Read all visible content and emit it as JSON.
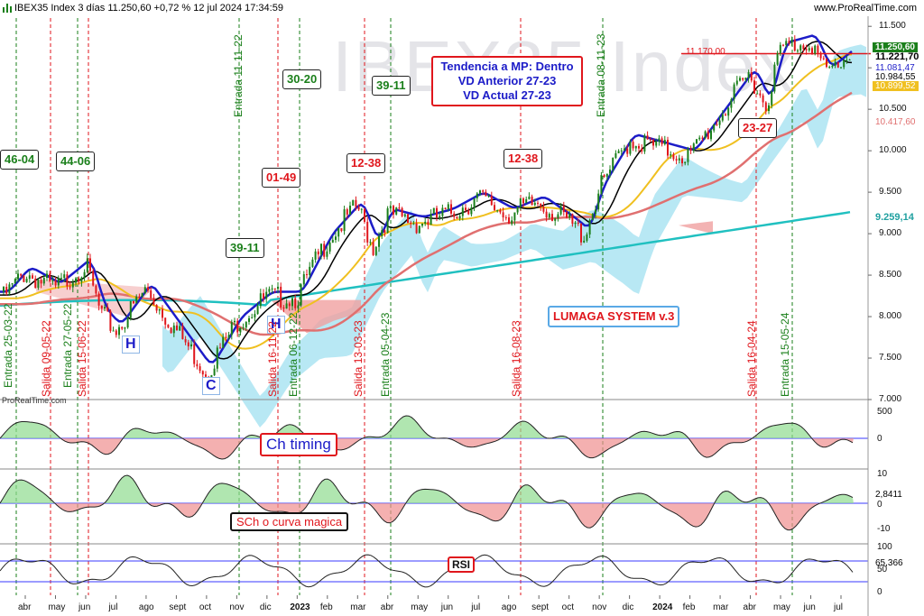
{
  "header": {
    "title": "IBEX35 Index 3 días 11.250,60 +0,72 % 12 jul 2024 17:34:59",
    "site": "www.ProRealTime.com",
    "watermark": "IBEX35 Index",
    "footer_brand": "ProRealTime.com"
  },
  "colors": {
    "up": "#1a7f1a",
    "down": "#e0161c",
    "fast_ma": "#1c1cc8",
    "mid_ma": "#000000",
    "yellow_ma": "#f0c020",
    "salmon_ma": "#e07070",
    "teal_ma": "#20c0c0",
    "cloud_up": "#a0e0f0",
    "cloud_down": "#f0a0a0"
  },
  "annotations": {
    "tendencia": [
      "Tendencia a MP: Dentro",
      "VD Anterior 27-23",
      "VD Actual 27-23"
    ],
    "lumaga": "LUMAGA SYSTEM v.3",
    "ch_timing": "Ch timing",
    "sch": "SCh o curva magica",
    "rsi": "RSI",
    "boxes": [
      {
        "text": "46-04",
        "color": "green"
      },
      {
        "text": "44-06",
        "color": "green"
      },
      {
        "text": "39-11",
        "color": "green"
      },
      {
        "text": "30-20",
        "color": "green"
      },
      {
        "text": "39-11",
        "color": "green"
      },
      {
        "text": "01-49",
        "color": "red"
      },
      {
        "text": "12-38",
        "color": "red"
      },
      {
        "text": "12-38",
        "color": "red"
      },
      {
        "text": "23-27",
        "color": "red"
      }
    ],
    "patterns": [
      "H",
      "C",
      "H"
    ],
    "level_line_label": "11.170,00",
    "signals": [
      {
        "label": "Entrada 25-03-22",
        "type": "entry"
      },
      {
        "label": "Salida 09-05-22",
        "type": "exit"
      },
      {
        "label": "Entrada 27-05-22",
        "type": "entry"
      },
      {
        "label": "Salida 15-06-22",
        "type": "exit"
      },
      {
        "label": "Entrada 11-11-22",
        "type": "entry"
      },
      {
        "label": "Salida 16-11-22",
        "type": "exit"
      },
      {
        "label": "Entrada 06-12-22",
        "type": "entry"
      },
      {
        "label": "Salida 13-03-23",
        "type": "exit"
      },
      {
        "label": "Entrada 05-04-23",
        "type": "entry"
      },
      {
        "label": "Salida 16-08-23",
        "type": "exit"
      },
      {
        "label": "Entrada 08-11-23",
        "type": "entry"
      },
      {
        "label": "Salida 16-04-24",
        "type": "exit"
      },
      {
        "label": "Entrada 15-05-24",
        "type": "entry"
      }
    ]
  },
  "price_tags": [
    {
      "text": "11.250,60",
      "bg": "#1a7f1a",
      "fg": "#ffffff"
    },
    {
      "text": "11.221,70",
      "bg": "#ffffff",
      "fg": "#000000"
    },
    {
      "text": "11.081,47",
      "bg": "#ffffff",
      "fg": "#1c1cc8"
    },
    {
      "text": "10.984,55",
      "bg": "#ffffff",
      "fg": "#000000"
    },
    {
      "text": "10.899,52",
      "bg": "#f0c020",
      "fg": "#ffffff"
    },
    {
      "text": "10.417,60",
      "bg": "#ffffff",
      "fg": "#e07070"
    },
    {
      "text": "9.259,14",
      "bg": "#ffffff",
      "fg": "#20a0a0"
    }
  ],
  "chart_data": [
    {
      "type": "candlestick",
      "title": "IBEX35 Index 3 días",
      "x_ticks": [
        "abr",
        "may",
        "jun",
        "jul",
        "ago",
        "sept",
        "oct",
        "nov",
        "dic",
        "2023",
        "feb",
        "mar",
        "abr",
        "may",
        "jun",
        "jul",
        "ago",
        "sept",
        "oct",
        "nov",
        "dic",
        "2024",
        "feb",
        "mar",
        "abr",
        "may",
        "jun",
        "jul"
      ],
      "y_ticks": [
        7000,
        7500,
        8000,
        8500,
        9000,
        9500,
        10000,
        10500,
        11000,
        11500
      ],
      "y_tick_labels": [
        "7.000",
        "7.500",
        "8.000",
        "8.500",
        "9.000",
        "9.500",
        "10.000",
        "10.500",
        "",
        "11.500"
      ],
      "ylim": [
        7000,
        11600
      ],
      "level_line": 11170,
      "close_path": [
        [
          "mar 2022",
          8300
        ],
        [
          "abr 2022",
          8600
        ],
        [
          "may 2022",
          8400
        ],
        [
          "jun 2022",
          8700
        ],
        [
          "jun 2022",
          8100
        ],
        [
          "jul 2022",
          7900
        ],
        [
          "ago 2022",
          8400
        ],
        [
          "sept 2022",
          7900
        ],
        [
          "oct 2022",
          7400
        ],
        [
          "nov 2022",
          8000
        ],
        [
          "dic 2022",
          8300
        ],
        [
          "ene 2023",
          8300
        ],
        [
          "feb 2023",
          9000
        ],
        [
          "mar 2023",
          9400
        ],
        [
          "mar 2023",
          8900
        ],
        [
          "abr 2023",
          9300
        ],
        [
          "may 2023",
          9200
        ],
        [
          "jun 2023",
          9300
        ],
        [
          "jul 2023",
          9500
        ],
        [
          "ago 2023",
          9300
        ],
        [
          "sept 2023",
          9450
        ],
        [
          "oct 2023",
          9200
        ],
        [
          "oct 2023",
          9050
        ],
        [
          "nov 2023",
          9600
        ],
        [
          "dic 2023",
          10200
        ],
        [
          "ene 2024",
          10100
        ],
        [
          "feb 2024",
          10000
        ],
        [
          "mar 2024",
          10500
        ],
        [
          "abr 2024",
          11000
        ],
        [
          "abr 2024",
          10600
        ],
        [
          "may 2024",
          11300
        ],
        [
          "jun 2024",
          11400
        ],
        [
          "jun 2024",
          11000
        ],
        [
          "jul 2024",
          11250
        ]
      ]
    },
    {
      "type": "area",
      "title": "Ch timing",
      "y_ticks": [
        500,
        0
      ],
      "y_tick_labels": [
        "500",
        "0"
      ]
    },
    {
      "type": "area",
      "title": "SCh o curva magica",
      "y_ticks": [
        10,
        0,
        -10
      ],
      "y_tick_labels": [
        "10",
        "0",
        "-10"
      ],
      "last_value": "2,8411"
    },
    {
      "type": "line",
      "title": "RSI",
      "y_ticks": [
        100,
        50,
        0
      ],
      "y_tick_labels": [
        "100",
        "50",
        "0"
      ],
      "last_value": "65,366"
    }
  ]
}
